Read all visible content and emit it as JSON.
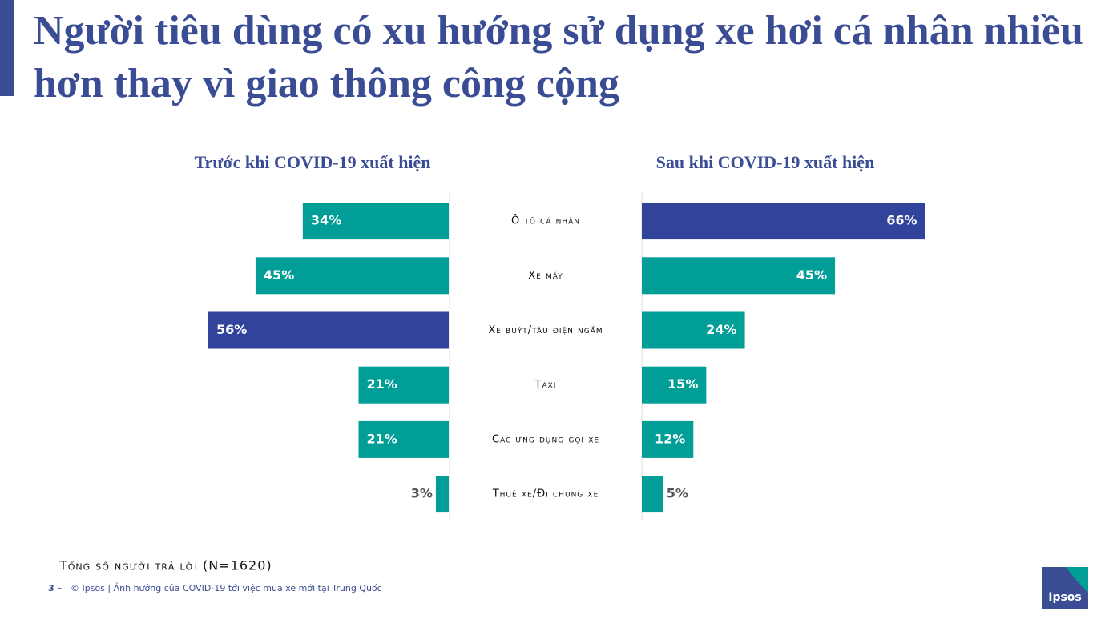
{
  "title": "Người tiêu dùng có xu hướng sử dụng xe hơi cá nhân nhiều hơn thay vì giao thông công cộng",
  "chart_data": {
    "type": "butterfly",
    "categories": [
      "Ô tô cá nhân",
      "Xe máy",
      "Xe buýt/tàu điện ngầm",
      "Taxi",
      "Các ứng dụng gọi xe",
      "Thuê xe/Đi chung xe"
    ],
    "xlim": [
      0,
      70
    ],
    "series": [
      {
        "name": "Trước khi COVID-19 xuất hiện",
        "color": "#009e96",
        "colors": [
          "#009e96",
          "#009e96",
          "#31439b",
          "#009e96",
          "#009e96",
          "#009e96"
        ],
        "values": [
          34,
          45,
          56,
          21,
          21,
          3
        ],
        "value_labels": [
          "34%",
          "45%",
          "56%",
          "21%",
          "21%",
          "3%"
        ]
      },
      {
        "name": "Sau khi COVID-19 xuất hiện",
        "color": "#009e96",
        "colors": [
          "#31439b",
          "#009e96",
          "#009e96",
          "#009e96",
          "#009e96",
          "#009e96"
        ],
        "values": [
          66,
          45,
          24,
          15,
          12,
          5
        ],
        "value_labels": [
          "66%",
          "45%",
          "24%",
          "15%",
          "12%",
          "5%"
        ]
      }
    ]
  },
  "note": "Tổng số người trả lời (N=1620)",
  "footer": {
    "page": "3 –",
    "text": "© Ipsos | Ảnh hưởng của COVID-19 tới việc mua xe mới tại Trung Quốc"
  },
  "logo": "Ipsos"
}
